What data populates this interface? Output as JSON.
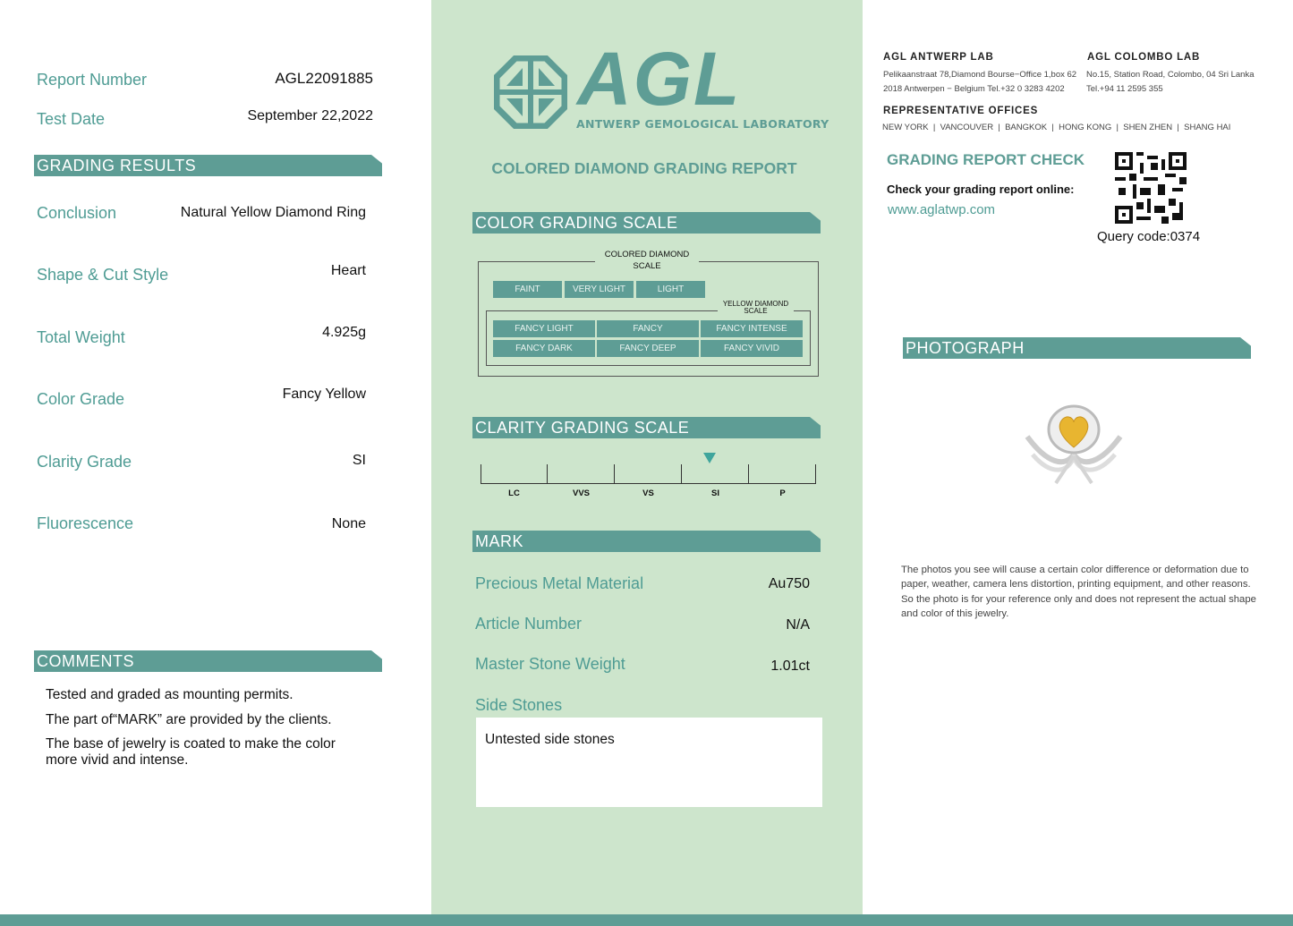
{
  "left": {
    "report_number_label": "Report Number",
    "report_number": "AGL22091885",
    "test_date_label": "Test Date",
    "test_date": "September 22,2022",
    "grading_results_title": "GRADING  RESULTS",
    "fields": [
      {
        "label": "Conclusion",
        "value": "Natural Yellow Diamond Ring"
      },
      {
        "label": "Shape & Cut Style",
        "value": "Heart"
      },
      {
        "label": "Total Weight",
        "value": "4.925g"
      },
      {
        "label": "Color Grade",
        "value": "Fancy Yellow"
      },
      {
        "label": "Clarity Grade",
        "value": "SI"
      },
      {
        "label": "Fluorescence",
        "value": "None"
      }
    ],
    "comments_title": "COMMENTS",
    "comments": [
      "Tested and graded as mounting permits.",
      "The part of“MARK” are provided by the clients.",
      "The base of jewelry is coated to make the color more vivid and intense."
    ]
  },
  "middle": {
    "logo_text": "AGL",
    "logo_subtitle": "ANTWERP GEMOLOGICAL LABORATORY",
    "report_title": "COLORED DIAMOND GRADING REPORT",
    "color_scale_title": "COLOR  GRADING  SCALE",
    "colored_scale_label": "COLORED DIAMOND SCALE",
    "colored_scale": [
      "FAINT",
      "VERY LIGHT",
      "LIGHT"
    ],
    "yellow_scale_label": "YELLOW DIAMOND SCALE",
    "yellow_scale": [
      "FANCY LIGHT",
      "FANCY",
      "FANCY INTENSE",
      "FANCY DARK",
      "FANCY DEEP",
      "FANCY VIVID"
    ],
    "clarity_scale_title": "CLARITY  GRADING  SCALE",
    "clarity_scale": [
      "LC",
      "VVS",
      "VS",
      "SI",
      "P"
    ],
    "clarity_selected": "SI",
    "mark_title": "MARK",
    "mark_fields": [
      {
        "label": "Precious Metal Material",
        "value": "Au750"
      },
      {
        "label": "Article Number",
        "value": "N/A"
      },
      {
        "label": "Master Stone Weight",
        "value": "1.01ct"
      }
    ],
    "side_stones_label": "Side Stones",
    "side_stones_value": "Untested side stones"
  },
  "right": {
    "antwerp_title": "AGL ANTWERP LAB",
    "antwerp_lines": [
      "Pelikaanstraat 78,Diamond Bourse−Office 1,box 62",
      "2018 Antwerpen − Belgium  Tel.+32 0 3283 4202"
    ],
    "colombo_title": "AGL COLOMBO LAB",
    "colombo_lines": [
      "No.15, Station Road, Colombo, 04 Sri Lanka",
      "Tel.+94 11 2595 355"
    ],
    "offices_title": "REPRESENTATIVE OFFICES",
    "offices": "NEW YORK  |  VANCOUVER  |  BANGKOK  |  HONG KONG  |  SHEN ZHEN  |  SHANG HAI",
    "check_title": "GRADING REPORT CHECK",
    "check_text": "Check your grading report online:",
    "check_url": "www.aglatwp.com",
    "query_code": "Query code:0374",
    "photo_title": "PHOTOGRAPH",
    "disclaimer": "The photos you see will cause a certain color difference or deformation due to paper, weather, camera lens distortion, printing equipment, and other reasons. So the photo is for your reference only and does not represent the actual shape and color of this jewelry."
  },
  "colors": {
    "teal": "#5e9d95",
    "panel": "#cde5cc",
    "label": "#4f9c94"
  }
}
